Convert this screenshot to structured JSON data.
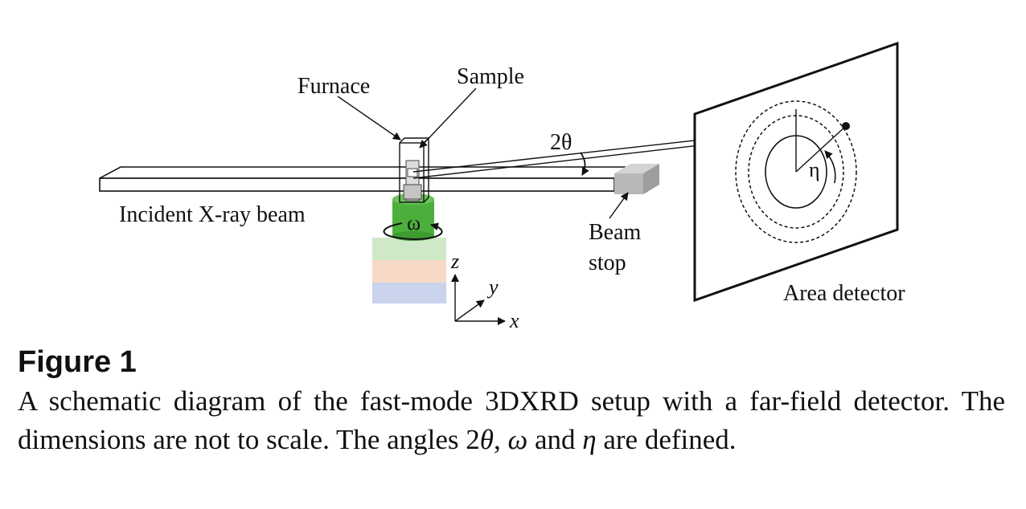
{
  "figure": {
    "labels": {
      "furnace": "Furnace",
      "sample": "Sample",
      "two_theta": "2θ",
      "incident_beam": "Incident X-ray beam",
      "omega": "ω",
      "axis_z": "z",
      "axis_y": "y",
      "axis_x": "x",
      "beam_stop_line1": "Beam",
      "beam_stop_line2": "stop",
      "eta": "η",
      "area_detector": "Area detector"
    },
    "colors": {
      "stage_green": "#4caf3c",
      "block_green": "#cfe8c7",
      "block_orange": "#f6d9c6",
      "block_blue": "#c9d3ec",
      "beam_stop_gray": "#b8b8b8"
    }
  },
  "caption": {
    "heading": "Figure 1",
    "text_a": "A schematic diagram of the fast-mode 3DXRD setup with a far-field detector. The dimensions are not to scale. The angles 2",
    "theta": "θ",
    "text_b": ", ",
    "omega": "ω",
    "text_c": " and ",
    "eta": "η",
    "text_d": " are defined."
  }
}
